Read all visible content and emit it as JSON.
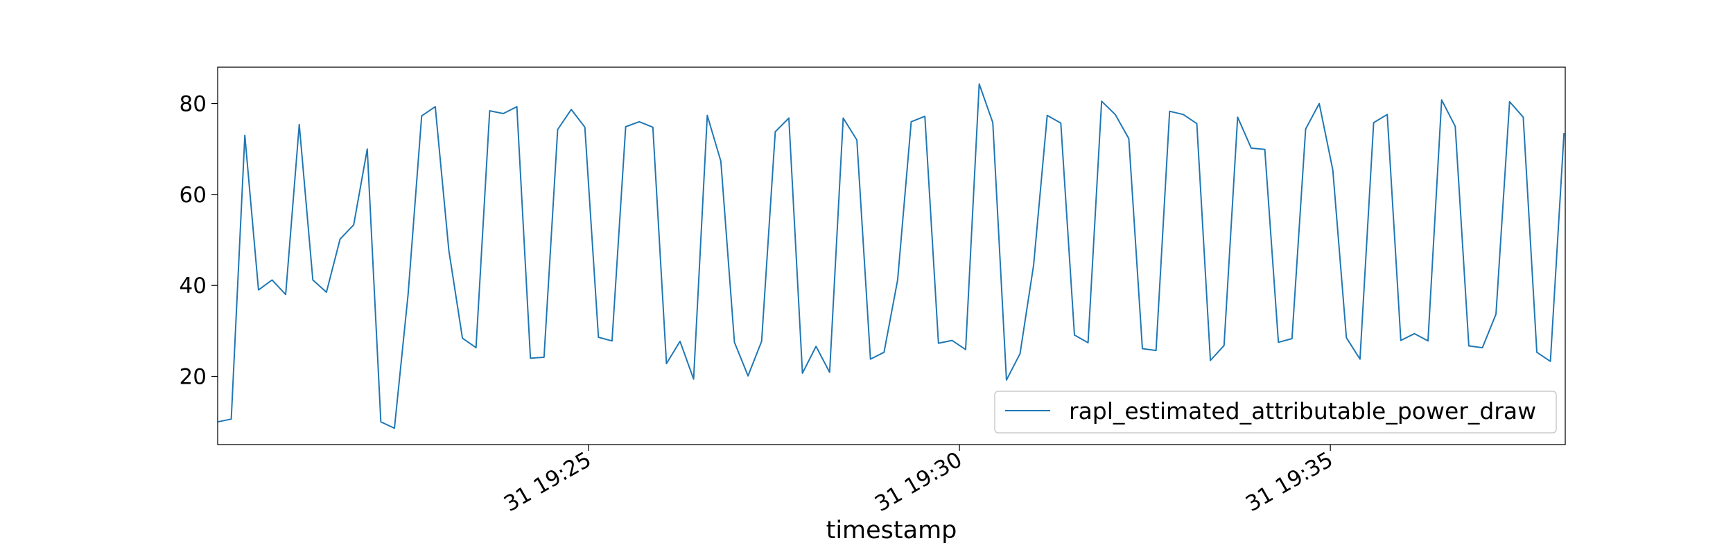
{
  "chart_data": {
    "type": "line",
    "title": "",
    "xlabel": "timestamp",
    "ylabel": "",
    "x_unit": "minute of day 31",
    "xlim": [
      "31 19:20:00",
      "31 19:38:10"
    ],
    "ylim": [
      5,
      88
    ],
    "grid": false,
    "legend_position": "lower-right",
    "x_ticks": [
      {
        "value": "31 19:25",
        "label": "31 19:25"
      },
      {
        "value": "31 19:30",
        "label": "31 19:30"
      },
      {
        "value": "31 19:35",
        "label": "31 19:35"
      }
    ],
    "y_ticks": [
      20,
      40,
      60,
      80
    ],
    "series": [
      {
        "name": "rapl_estimated_attributable_power_draw",
        "color": "#1f77b4",
        "x": [
          "31 19:20:00",
          "31 19:20:11",
          "31 19:20:22",
          "31 19:20:33",
          "31 19:20:44",
          "31 19:20:55",
          "31 19:21:06",
          "31 19:21:17",
          "31 19:21:28",
          "31 19:21:39",
          "31 19:21:50",
          "31 19:22:01",
          "31 19:22:12",
          "31 19:22:23",
          "31 19:22:34",
          "31 19:22:45",
          "31 19:22:56",
          "31 19:23:07",
          "31 19:23:18",
          "31 19:23:29",
          "31 19:23:40",
          "31 19:23:51",
          "31 19:24:02",
          "31 19:24:13",
          "31 19:24:24",
          "31 19:24:35",
          "31 19:24:46",
          "31 19:24:57",
          "31 19:25:08",
          "31 19:25:19",
          "31 19:25:30",
          "31 19:25:41",
          "31 19:25:52",
          "31 19:26:03",
          "31 19:26:14",
          "31 19:26:25",
          "31 19:26:36",
          "31 19:26:47",
          "31 19:26:58",
          "31 19:27:09",
          "31 19:27:20",
          "31 19:27:31",
          "31 19:27:42",
          "31 19:27:53",
          "31 19:28:04",
          "31 19:28:15",
          "31 19:28:26",
          "31 19:28:37",
          "31 19:28:48",
          "31 19:28:59",
          "31 19:29:10",
          "31 19:29:21",
          "31 19:29:32",
          "31 19:29:43",
          "31 19:29:54",
          "31 19:30:05",
          "31 19:30:16",
          "31 19:30:27",
          "31 19:30:38",
          "31 19:30:49",
          "31 19:31:00",
          "31 19:31:11",
          "31 19:31:22",
          "31 19:31:33",
          "31 19:31:44",
          "31 19:31:55",
          "31 19:32:06",
          "31 19:32:17",
          "31 19:32:28",
          "31 19:32:39",
          "31 19:32:50",
          "31 19:33:01",
          "31 19:33:12",
          "31 19:33:23",
          "31 19:33:34",
          "31 19:33:45",
          "31 19:33:56",
          "31 19:34:07",
          "31 19:34:18",
          "31 19:34:29",
          "31 19:34:40",
          "31 19:34:51",
          "31 19:35:02",
          "31 19:35:13",
          "31 19:35:24",
          "31 19:35:35",
          "31 19:35:46",
          "31 19:35:57",
          "31 19:36:08",
          "31 19:36:19",
          "31 19:36:30",
          "31 19:36:41",
          "31 19:36:52",
          "31 19:37:03",
          "31 19:37:14",
          "31 19:37:25",
          "31 19:37:36",
          "31 19:37:47",
          "31 19:37:58",
          "31 19:38:09"
        ],
        "y": [
          10.0,
          10.6,
          73.0,
          39.0,
          41.2,
          38.0,
          75.4,
          41.2,
          38.5,
          50.2,
          53.3,
          70.0,
          10.0,
          8.6,
          38.0,
          77.3,
          79.3,
          47.7,
          28.4,
          26.3,
          78.4,
          77.8,
          79.3,
          24.0,
          24.2,
          74.3,
          78.7,
          74.8,
          28.6,
          27.8,
          74.9,
          76.0,
          74.8,
          22.8,
          27.7,
          19.4,
          77.4,
          67.3,
          27.5,
          20.1,
          27.7,
          73.8,
          76.8,
          20.7,
          26.6,
          20.9,
          76.8,
          72.0,
          23.8,
          25.3,
          41.2,
          76.0,
          77.2,
          27.3,
          27.9,
          25.9,
          84.3,
          75.8,
          19.2,
          25.0,
          44.5,
          77.4,
          75.7,
          29.1,
          27.4,
          80.5,
          77.6,
          72.3,
          26.1,
          25.7,
          78.3,
          77.6,
          75.6,
          23.5,
          26.8,
          77.0,
          70.2,
          69.9,
          27.5,
          28.3,
          74.4,
          80.0,
          65.4,
          28.5,
          23.8,
          75.8,
          77.6,
          27.9,
          29.4,
          27.8,
          80.8,
          75.0,
          26.7,
          26.3,
          33.7,
          80.4,
          77.0,
          25.3,
          23.3,
          73.5
        ]
      }
    ]
  }
}
